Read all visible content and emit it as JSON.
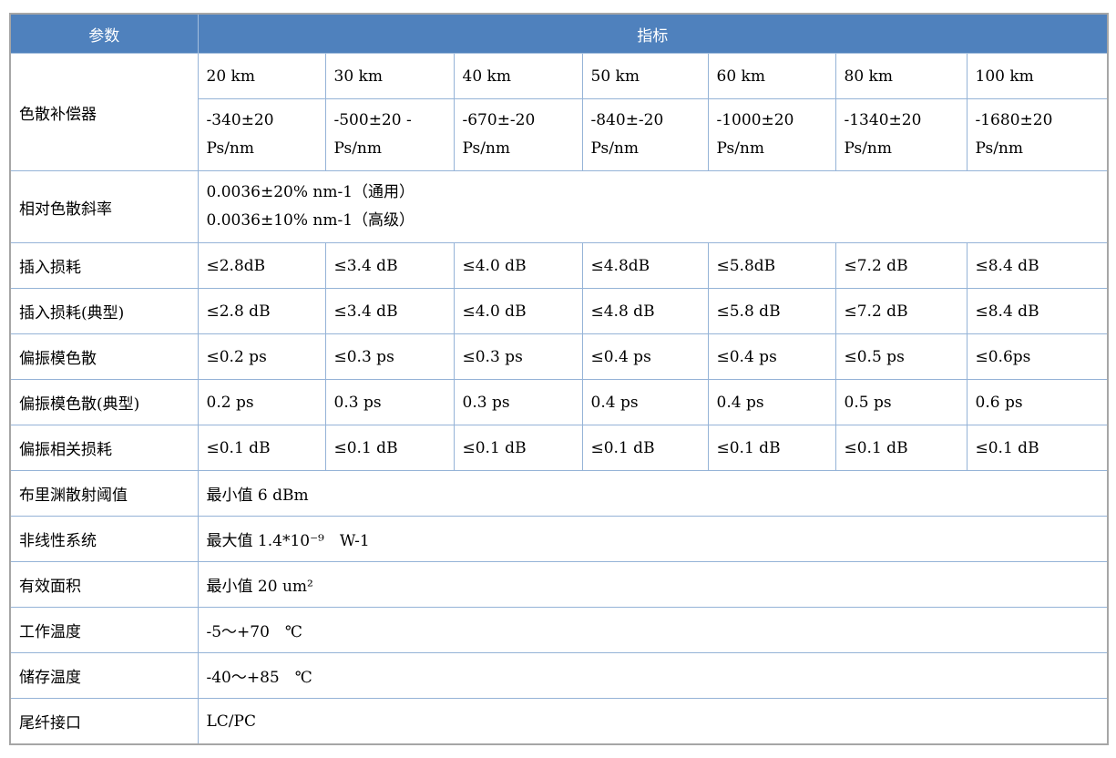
{
  "header": {
    "param_label": "参数",
    "spec_label": "指标"
  },
  "colors": {
    "header_bg": "#4f81bd",
    "header_text": "#ffffff",
    "grid_line": "#95b3d7",
    "outer_border": "#a6a6a6"
  },
  "compensator": {
    "label": "色散补偿器",
    "distances": [
      "20 km",
      "30 km",
      "40 km",
      "50 km",
      "60 km",
      "80 km",
      "100 km"
    ],
    "values": [
      [
        "-340±20",
        "Ps/nm"
      ],
      [
        "-500±20 -",
        "Ps/nm"
      ],
      [
        "-670±-20",
        "Ps/nm"
      ],
      [
        "-840±-20",
        "Ps/nm"
      ],
      [
        "-1000±20",
        "Ps/nm"
      ],
      [
        "-1340±20",
        "Ps/nm"
      ],
      [
        "-1680±20",
        "Ps/nm"
      ]
    ]
  },
  "slope_row": {
    "label": "相对色散斜率",
    "lines": [
      "0.0036±20% nm-1（通用）",
      "0.0036±10% nm-1（高级）"
    ]
  },
  "multi_rows": [
    {
      "label": "插入损耗",
      "values": [
        "≤2.8dB",
        "≤3.4 dB",
        "≤4.0 dB",
        "≤4.8dB",
        "≤5.8dB",
        "≤7.2 dB",
        "≤8.4 dB"
      ]
    },
    {
      "label": "插入损耗(典型)",
      "values": [
        "≤2.8 dB",
        "≤3.4 dB",
        "≤4.0 dB",
        "≤4.8 dB",
        "≤5.8 dB",
        "≤7.2 dB",
        "≤8.4 dB"
      ]
    },
    {
      "label": "偏振模色散",
      "values": [
        "≤0.2 ps",
        "≤0.3 ps",
        "≤0.3 ps",
        "≤0.4 ps",
        "≤0.4 ps",
        "≤0.5 ps",
        "≤0.6ps"
      ]
    },
    {
      "label": "偏振模色散(典型)",
      "values": [
        "0.2 ps",
        "0.3 ps",
        "0.3 ps",
        "0.4 ps",
        "0.4 ps",
        "0.5 ps",
        "0.6 ps"
      ]
    },
    {
      "label": "偏振相关损耗",
      "values": [
        "≤0.1 dB",
        "≤0.1 dB",
        "≤0.1 dB",
        "≤0.1 dB",
        "≤0.1 dB",
        "≤0.1 dB",
        "≤0.1 dB"
      ]
    }
  ],
  "single_rows": [
    {
      "label": "布里渊散射阈值",
      "value": "最小值 6 dBm"
    },
    {
      "label": "非线性系统",
      "value": "最大值 1.4*10⁻⁹　W-1"
    },
    {
      "label": "有效面积",
      "value": "最小值 20 um²"
    },
    {
      "label": "工作温度",
      "value": "-5～+70　℃"
    },
    {
      "label": "储存温度",
      "value": "-40～+85　℃"
    },
    {
      "label": "尾纤接口",
      "value": "LC/PC"
    }
  ]
}
